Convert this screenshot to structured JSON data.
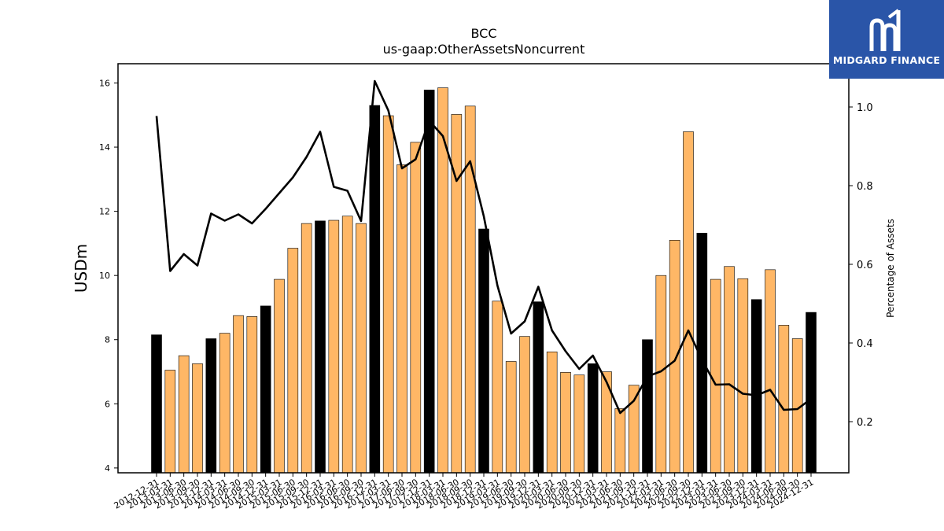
{
  "chart_data": {
    "type": "bar",
    "title": "BCC",
    "subtitle": "us-gaap:OtherAssetsNoncurrent",
    "ylabel": "USDm",
    "y2label": "Percentage of Assets",
    "ylim": [
      3.85,
      16.6
    ],
    "y2lim": [
      0.07,
      1.11
    ],
    "yticks": [
      "4",
      "6",
      "8",
      "10",
      "12",
      "14",
      "16"
    ],
    "y2ticks": [
      "0.2",
      "0.4",
      "0.6",
      "0.8",
      "1.0"
    ],
    "categories": [
      "2012-12-31",
      "2013-03-31",
      "2013-06-30",
      "2013-09-30",
      "2013-12-31",
      "2014-03-31",
      "2014-06-30",
      "2014-09-30",
      "2014-12-31",
      "2015-03-31",
      "2015-06-30",
      "2015-09-30",
      "2015-12-31",
      "2016-03-31",
      "2016-06-30",
      "2016-09-30",
      "2016-12-31",
      "2017-03-31",
      "2017-06-30",
      "2017-09-30",
      "2017-12-31",
      "2018-03-31",
      "2018-06-30",
      "2018-09-30",
      "2018-12-31",
      "2019-03-31",
      "2019-06-30",
      "2019-09-30",
      "2019-12-31",
      "2020-03-31",
      "2020-06-30",
      "2020-09-30",
      "2020-12-31",
      "2021-03-31",
      "2021-06-30",
      "2021-09-30",
      "2021-12-31",
      "2022-03-31",
      "2022-06-30",
      "2022-09-30",
      "2022-12-31",
      "2023-03-31",
      "2023-06-30",
      "2023-09-30",
      "2023-12-31",
      "2024-03-31",
      "2024-06-30",
      "2024-09-30",
      "2024-12-31"
    ],
    "series": [
      {
        "values": [
          8.15,
          7.05,
          7.5,
          7.25,
          8.03,
          8.2,
          8.75,
          8.72,
          9.05,
          9.88,
          10.85,
          11.62,
          11.7,
          11.72,
          11.85,
          11.62,
          15.3,
          14.98,
          13.45,
          14.15,
          15.78,
          15.85,
          15.02,
          15.28,
          11.45,
          9.2,
          7.32,
          8.1,
          9.18,
          7.62,
          6.98,
          6.9,
          7.25,
          7.0,
          5.85,
          6.58,
          8.0,
          10.0,
          11.1,
          14.48,
          11.32,
          9.88,
          10.28,
          9.9,
          9.25,
          10.18,
          8.45,
          8.03,
          8.85
        ]
      },
      {
        "values": [
          0.977,
          0.583,
          0.626,
          0.597,
          0.729,
          0.711,
          0.727,
          0.704,
          0.741,
          0.781,
          0.821,
          0.873,
          0.937,
          0.797,
          0.787,
          0.71,
          1.066,
          0.991,
          0.844,
          0.867,
          0.965,
          0.926,
          0.812,
          0.862,
          0.722,
          0.546,
          0.424,
          0.455,
          0.543,
          0.432,
          0.379,
          0.334,
          0.368,
          0.301,
          0.222,
          0.253,
          0.315,
          0.328,
          0.355,
          0.432,
          0.357,
          0.294,
          0.295,
          0.271,
          0.267,
          0.281,
          0.23,
          0.232,
          0.258
        ]
      }
    ],
    "highlight_color": "#000000",
    "bar_color": "#ffb766",
    "line_color": "#000000",
    "grid": false
  },
  "logo": {
    "text": "MIDGARD FINANCE",
    "background": "#2a55a8"
  }
}
